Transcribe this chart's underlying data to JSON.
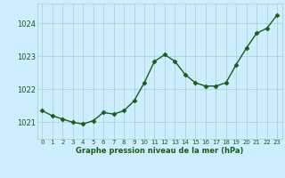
{
  "x": [
    0,
    1,
    2,
    3,
    4,
    5,
    6,
    7,
    8,
    9,
    10,
    11,
    12,
    13,
    14,
    15,
    16,
    17,
    18,
    19,
    20,
    21,
    22,
    23
  ],
  "y": [
    1021.35,
    1021.2,
    1021.1,
    1021.0,
    1020.95,
    1021.05,
    1021.3,
    1021.25,
    1021.35,
    1021.65,
    1022.2,
    1022.85,
    1023.05,
    1022.85,
    1022.45,
    1022.2,
    1022.1,
    1022.1,
    1022.2,
    1022.75,
    1023.25,
    1023.7,
    1023.85,
    1024.25
  ],
  "line_color": "#1a5c1a",
  "marker": "D",
  "marker_size": 2.5,
  "bg_color": "#cceeff",
  "grid_color": "#aacccc",
  "xlabel": "Graphe pression niveau de la mer (hPa)",
  "xlabel_color": "#1a5c1a",
  "tick_color": "#1a5c1a",
  "ylim": [
    1020.5,
    1024.6
  ],
  "yticks": [
    1021,
    1022,
    1023,
    1024
  ],
  "xlim": [
    -0.5,
    23.5
  ],
  "xticks": [
    0,
    1,
    2,
    3,
    4,
    5,
    6,
    7,
    8,
    9,
    10,
    11,
    12,
    13,
    14,
    15,
    16,
    17,
    18,
    19,
    20,
    21,
    22,
    23
  ]
}
